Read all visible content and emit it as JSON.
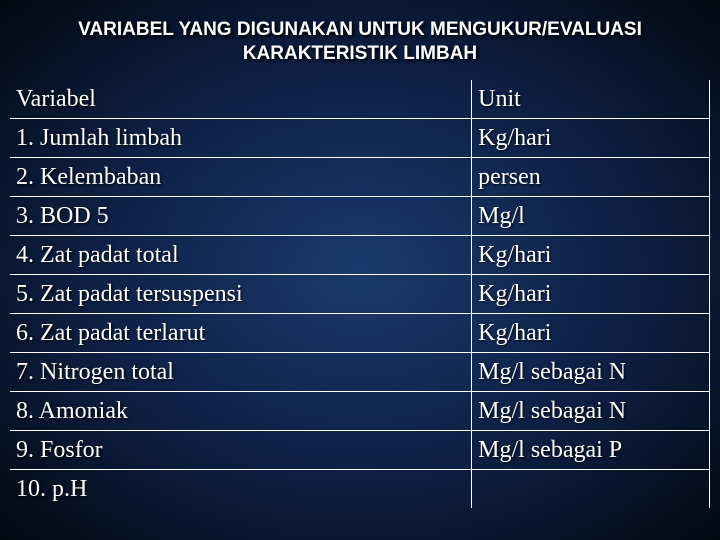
{
  "title_line1": "VARIABEL YANG DIGUNAKAN UNTUK MENGUKUR/EVALUASI",
  "title_line2": "KARAKTERISTIK LIMBAH",
  "table": {
    "header": {
      "col1": "Variabel",
      "col2": "Unit"
    },
    "rows": [
      {
        "col1": "1. Jumlah limbah",
        "col2": "Kg/hari"
      },
      {
        "col1": "2. Kelembaban",
        "col2": "persen"
      },
      {
        "col1": "3. BOD 5",
        "col2": "Mg/l"
      },
      {
        "col1": "4. Zat padat total",
        "col2": "Kg/hari"
      },
      {
        "col1": "5. Zat padat tersuspensi",
        "col2": "Kg/hari"
      },
      {
        "col1": "6. Zat padat terlarut",
        "col2": "Kg/hari"
      },
      {
        "col1": "7. Nitrogen total",
        "col2": "Mg/l sebagai N"
      },
      {
        "col1": "8. Amoniak",
        "col2": "Mg/l sebagai N"
      },
      {
        "col1": "9. Fosfor",
        "col2": "Mg/l sebagai P"
      },
      {
        "col1": "10. p.H",
        "col2": ""
      }
    ]
  },
  "style": {
    "title_fontsize": 19,
    "title_color": "#ffffff",
    "title_font": "Arial",
    "cell_fontsize": 24,
    "cell_color": "#ffffff",
    "cell_font": "Times New Roman",
    "border_color": "#ffffff",
    "col1_width_pct": 66,
    "col2_width_pct": 34,
    "bg_gradient_center": "#1a3a6e",
    "bg_gradient_mid": "#0d1f42",
    "bg_gradient_edge": "#030812"
  }
}
